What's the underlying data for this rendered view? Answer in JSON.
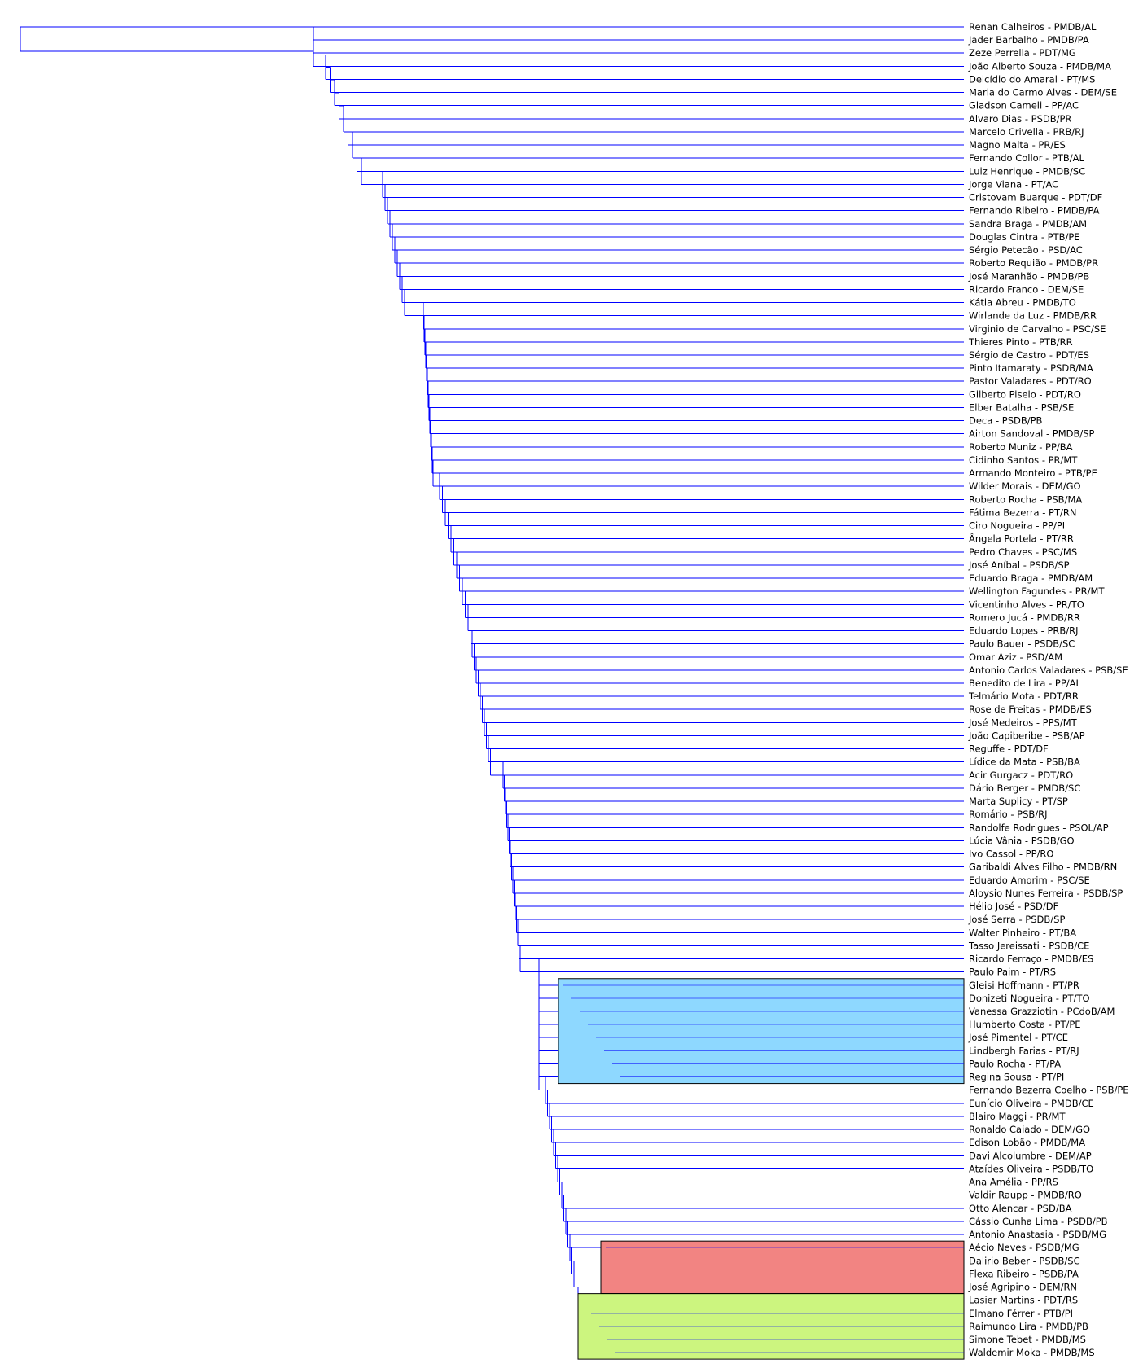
{
  "colors": {
    "branch": "#0000ff",
    "cluster_blue": "#8ed8ff",
    "cluster_red": "#f28482",
    "cluster_green": "#ccf57f",
    "label": "#000000",
    "background": "#ffffff"
  },
  "leaves": [
    "Renan Calheiros - PMDB/AL",
    "Jader Barbalho - PMDB/PA",
    "Zeze Perrella - PDT/MG",
    "João Alberto Souza - PMDB/MA",
    "Delcídio do Amaral - PT/MS",
    "Maria do Carmo Alves - DEM/SE",
    "Gladson Cameli - PP/AC",
    "Alvaro Dias - PSDB/PR",
    "Marcelo Crivella - PRB/RJ",
    "Magno Malta - PR/ES",
    "Fernando Collor - PTB/AL",
    "Luiz Henrique - PMDB/SC",
    "Jorge Viana - PT/AC",
    "Cristovam Buarque - PDT/DF",
    "Fernando Ribeiro - PMDB/PA",
    "Sandra Braga - PMDB/AM",
    "Douglas Cintra - PTB/PE",
    "Sérgio Petecão - PSD/AC",
    "Roberto Requião - PMDB/PR",
    "José Maranhão - PMDB/PB",
    "Ricardo Franco - DEM/SE",
    "Kátia Abreu - PMDB/TO",
    "Wirlande da Luz - PMDB/RR",
    "Virginio de Carvalho - PSC/SE",
    "Thieres Pinto - PTB/RR",
    "Sérgio de Castro - PDT/ES",
    "Pinto Itamaraty - PSDB/MA",
    "Pastor Valadares - PDT/RO",
    "Gilberto Piselo - PDT/RO",
    "Elber Batalha - PSB/SE",
    "Deca - PSDB/PB",
    "Airton Sandoval - PMDB/SP",
    "Roberto Muniz - PP/BA",
    "Cidinho Santos - PR/MT",
    "Armando Monteiro - PTB/PE",
    "Wilder Morais - DEM/GO",
    "Roberto Rocha - PSB/MA",
    "Fátima Bezerra - PT/RN",
    "Ciro Nogueira - PP/PI",
    "Ângela Portela - PT/RR",
    "Pedro Chaves - PSC/MS",
    "José Aníbal - PSDB/SP",
    "Eduardo Braga - PMDB/AM",
    "Wellington Fagundes - PR/MT",
    "Vicentinho Alves - PR/TO",
    "Romero Jucá - PMDB/RR",
    "Eduardo Lopes - PRB/RJ",
    "Paulo Bauer - PSDB/SC",
    "Omar Aziz - PSD/AM",
    "Antonio Carlos Valadares - PSB/SE",
    "Benedito de Lira - PP/AL",
    "Telmário Mota - PDT/RR",
    "Rose de Freitas - PMDB/ES",
    "José Medeiros - PPS/MT",
    "João Capiberibe - PSB/AP",
    "Reguffe - PDT/DF",
    "Lídice da Mata - PSB/BA",
    "Acir Gurgacz - PDT/RO",
    "Dário Berger - PMDB/SC",
    "Marta Suplicy - PT/SP",
    "Romário - PSB/RJ",
    "Randolfe Rodrigues - PSOL/AP",
    "Lúcia Vânia - PSDB/GO",
    "Ivo Cassol - PP/RO",
    "Garibaldi Alves Filho - PMDB/RN",
    "Eduardo Amorim - PSC/SE",
    "Aloysio Nunes Ferreira - PSDB/SP",
    "Hélio José - PSD/DF",
    "José Serra - PSDB/SP",
    "Walter Pinheiro - PT/BA",
    "Tasso Jereissati - PSDB/CE",
    "Ricardo Ferraço - PMDB/ES",
    "Paulo Paim - PT/RS",
    "Gleisi Hoffmann - PT/PR",
    "Donizeti Nogueira - PT/TO",
    "Vanessa Grazziotin - PCdoB/AM",
    "Humberto Costa - PT/PE",
    "José Pimentel - PT/CE",
    "Lindbergh Farias - PT/RJ",
    "Paulo Rocha - PT/PA",
    "Regina Sousa - PT/PI",
    "Fernando Bezerra Coelho - PSB/PE",
    "Eunício Oliveira - PMDB/CE",
    "Blairo Maggi - PR/MT",
    "Ronaldo Caiado - DEM/GO",
    "Edison Lobão - PMDB/MA",
    "Davi Alcolumbre - DEM/AP",
    "Ataídes Oliveira - PSDB/TO",
    "Ana Amélia - PP/RS",
    "Valdir Raupp - PMDB/RO",
    "Otto Alencar - PSD/BA",
    "Cássio Cunha Lima - PSDB/PB",
    "Antonio Anastasia - PSDB/MG",
    "Aécio Neves - PSDB/MG",
    "Dalirio Beber - PSDB/SC",
    "Flexa Ribeiro - PSDB/PA",
    "José Agripino - DEM/RN",
    "Lasier Martins - PDT/RS",
    "Elmano Férrer - PTB/PI",
    "Raimundo Lira - PMDB/PB",
    "Simone Tebet - PMDB/MS",
    "Waldemir Moka - PMDB/MS"
  ],
  "highlighted_clusters": [
    {
      "color_key": "cluster_blue",
      "first_leaf": 73,
      "last_leaf": 80
    },
    {
      "color_key": "cluster_red",
      "first_leaf": 93,
      "last_leaf": 96
    },
    {
      "color_key": "cluster_green",
      "first_leaf": 97,
      "last_leaf": 101
    }
  ]
}
